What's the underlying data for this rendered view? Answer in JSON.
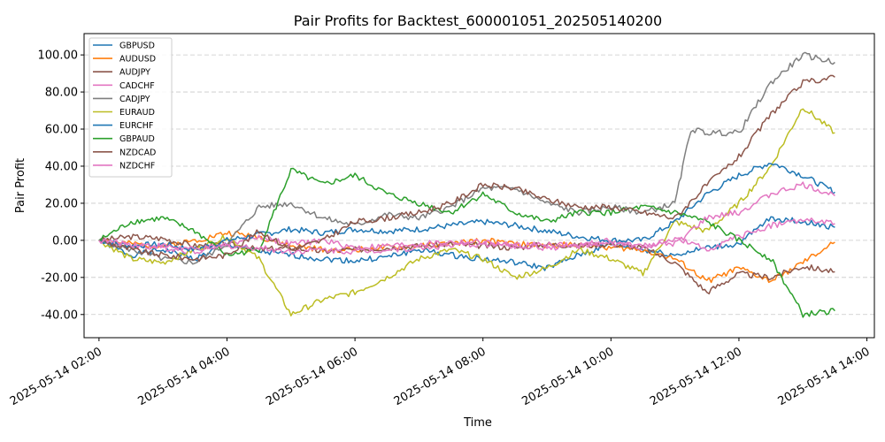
{
  "chart_data": {
    "type": "line",
    "title": "Pair Profits for Backtest_600001051_202505140200",
    "xlabel": "Time",
    "ylabel": "Pair Profit",
    "xlim": [
      "2025-05-14 01:46",
      "2025-05-14 14:07"
    ],
    "ylim": [
      -52.5,
      111.5
    ],
    "x_ticks": [
      "2025-05-14 02:00",
      "2025-05-14 04:00",
      "2025-05-14 06:00",
      "2025-05-14 08:00",
      "2025-05-14 10:00",
      "2025-05-14 12:00",
      "2025-05-14 14:00"
    ],
    "y_ticks": [
      -40,
      -20,
      0,
      20,
      40,
      60,
      80,
      100
    ],
    "y_tick_labels": [
      "-40.00",
      "-20.00",
      "0.00",
      "20.00",
      "40.00",
      "60.00",
      "80.00",
      "100.00"
    ],
    "grid": "horizontal dashed",
    "legend": "top-left",
    "series": [
      {
        "name": "GBPUSD",
        "color": "#1f77b4",
        "x": [
          "2025-05-14 02:00",
          "2025-05-14 02:30",
          "2025-05-14 03:00",
          "2025-05-14 03:30",
          "2025-05-14 04:00",
          "2025-05-14 04:30",
          "2025-05-14 05:00",
          "2025-05-14 05:30",
          "2025-05-14 06:00",
          "2025-05-14 06:30",
          "2025-05-14 07:00",
          "2025-05-14 07:30",
          "2025-05-14 08:00",
          "2025-05-14 08:30",
          "2025-05-14 09:00",
          "2025-05-14 09:30",
          "2025-05-14 10:00",
          "2025-05-14 10:30",
          "2025-05-14 11:00",
          "2025-05-14 11:30",
          "2025-05-14 12:00",
          "2025-05-14 12:30",
          "2025-05-14 13:00",
          "2025-05-14 13:30"
        ],
        "y": [
          0,
          -8,
          -5,
          -10,
          -2,
          -6,
          -8,
          -10,
          -11,
          -9,
          -5,
          -8,
          -10,
          -12,
          -15,
          -8,
          -2,
          -5,
          -8,
          -4,
          -2,
          12,
          10,
          7
        ]
      },
      {
        "name": "AUDUSD",
        "color": "#ff7f0e",
        "x": [
          "2025-05-14 02:00",
          "2025-05-14 02:30",
          "2025-05-14 03:00",
          "2025-05-14 03:30",
          "2025-05-14 04:00",
          "2025-05-14 04:30",
          "2025-05-14 05:00",
          "2025-05-14 05:30",
          "2025-05-14 06:00",
          "2025-05-14 06:30",
          "2025-05-14 07:00",
          "2025-05-14 07:30",
          "2025-05-14 08:00",
          "2025-05-14 08:30",
          "2025-05-14 09:00",
          "2025-05-14 09:30",
          "2025-05-14 10:00",
          "2025-05-14 10:30",
          "2025-05-14 11:00",
          "2025-05-14 11:30",
          "2025-05-14 12:00",
          "2025-05-14 12:30",
          "2025-05-14 13:00",
          "2025-05-14 13:30"
        ],
        "y": [
          0,
          -2,
          -3,
          0,
          4,
          2,
          -3,
          -5,
          -5,
          -4,
          -3,
          -2,
          0,
          -2,
          -3,
          -2,
          -4,
          -5,
          -10,
          -22,
          -15,
          -22,
          -12,
          -1
        ]
      },
      {
        "name": "AUDJPY",
        "color": "#8c564b",
        "x": [
          "2025-05-14 02:00",
          "2025-05-14 02:30",
          "2025-05-14 03:00",
          "2025-05-14 03:30",
          "2025-05-14 04:00",
          "2025-05-14 04:30",
          "2025-05-14 05:00",
          "2025-05-14 05:30",
          "2025-05-14 06:00",
          "2025-05-14 06:30",
          "2025-05-14 07:00",
          "2025-05-14 07:30",
          "2025-05-14 08:00",
          "2025-05-14 08:30",
          "2025-05-14 09:00",
          "2025-05-14 09:30",
          "2025-05-14 10:00",
          "2025-05-14 10:30",
          "2025-05-14 11:00",
          "2025-05-14 11:30",
          "2025-05-14 12:00",
          "2025-05-14 12:30",
          "2025-05-14 13:00",
          "2025-05-14 13:30"
        ],
        "y": [
          0,
          2,
          1,
          -3,
          -2,
          -5,
          -4,
          -6,
          -5,
          -4,
          -3,
          -2,
          -3,
          -4,
          -2,
          -3,
          -2,
          -4,
          -12,
          -28,
          -18,
          -20,
          -14,
          -17
        ]
      },
      {
        "name": "CADCHF",
        "color": "#e377c2",
        "x": [
          "2025-05-14 02:00",
          "2025-05-14 02:30",
          "2025-05-14 03:00",
          "2025-05-14 03:30",
          "2025-05-14 04:00",
          "2025-05-14 04:30",
          "2025-05-14 05:00",
          "2025-05-14 05:30",
          "2025-05-14 06:00",
          "2025-05-14 06:30",
          "2025-05-14 07:00",
          "2025-05-14 07:30",
          "2025-05-14 08:00",
          "2025-05-14 08:30",
          "2025-05-14 09:00",
          "2025-05-14 09:30",
          "2025-05-14 10:00",
          "2025-05-14 10:30",
          "2025-05-14 11:00",
          "2025-05-14 11:30",
          "2025-05-14 12:00",
          "2025-05-14 12:30",
          "2025-05-14 13:00",
          "2025-05-14 13:30"
        ],
        "y": [
          0,
          -3,
          -4,
          -6,
          -2,
          2,
          -2,
          0,
          -4,
          -3,
          -2,
          -1,
          -1,
          -3,
          -2,
          -3,
          0,
          -4,
          1,
          -5,
          2,
          8,
          11,
          9
        ]
      },
      {
        "name": "CADJPY",
        "color": "#7f7f7f",
        "x": [
          "2025-05-14 02:00",
          "2025-05-14 02:30",
          "2025-05-14 03:00",
          "2025-05-14 03:30",
          "2025-05-14 04:00",
          "2025-05-14 04:30",
          "2025-05-14 05:00",
          "2025-05-14 05:30",
          "2025-05-14 06:00",
          "2025-05-14 06:30",
          "2025-05-14 07:00",
          "2025-05-14 07:30",
          "2025-05-14 08:00",
          "2025-05-14 08:30",
          "2025-05-14 09:00",
          "2025-05-14 09:30",
          "2025-05-14 10:00",
          "2025-05-14 10:30",
          "2025-05-14 11:00",
          "2025-05-14 11:15",
          "2025-05-14 11:30",
          "2025-05-14 12:00",
          "2025-05-14 12:30",
          "2025-05-14 13:00",
          "2025-05-14 13:30"
        ],
        "y": [
          0,
          -5,
          -10,
          -12,
          -2,
          18,
          20,
          12,
          8,
          14,
          12,
          18,
          28,
          28,
          20,
          15,
          18,
          15,
          20,
          60,
          58,
          58,
          85,
          100,
          96
        ]
      },
      {
        "name": "EURAUD",
        "color": "#bcbd22",
        "x": [
          "2025-05-14 02:00",
          "2025-05-14 02:30",
          "2025-05-14 03:00",
          "2025-05-14 03:30",
          "2025-05-14 04:00",
          "2025-05-14 04:30",
          "2025-05-14 05:00",
          "2025-05-14 05:30",
          "2025-05-14 06:00",
          "2025-05-14 06:30",
          "2025-05-14 07:00",
          "2025-05-14 07:30",
          "2025-05-14 08:00",
          "2025-05-14 08:30",
          "2025-05-14 09:00",
          "2025-05-14 09:30",
          "2025-05-14 10:00",
          "2025-05-14 10:30",
          "2025-05-14 11:00",
          "2025-05-14 11:30",
          "2025-05-14 12:00",
          "2025-05-14 12:30",
          "2025-05-14 13:00",
          "2025-05-14 13:30"
        ],
        "y": [
          0,
          -10,
          -12,
          -5,
          2,
          -10,
          -40,
          -32,
          -28,
          -20,
          -10,
          -5,
          -10,
          -20,
          -15,
          -5,
          -10,
          -18,
          10,
          5,
          20,
          40,
          72,
          58
        ]
      },
      {
        "name": "EURCHF",
        "color": "#1f77b4",
        "x": [
          "2025-05-14 02:00",
          "2025-05-14 02:30",
          "2025-05-14 03:00",
          "2025-05-14 03:30",
          "2025-05-14 04:00",
          "2025-05-14 04:30",
          "2025-05-14 05:00",
          "2025-05-14 05:30",
          "2025-05-14 06:00",
          "2025-05-14 06:30",
          "2025-05-14 07:00",
          "2025-05-14 07:30",
          "2025-05-14 08:00",
          "2025-05-14 08:30",
          "2025-05-14 09:00",
          "2025-05-14 09:30",
          "2025-05-14 10:00",
          "2025-05-14 10:30",
          "2025-05-14 11:00",
          "2025-05-14 11:30",
          "2025-05-14 12:00",
          "2025-05-14 12:30",
          "2025-05-14 13:00",
          "2025-05-14 13:30"
        ],
        "y": [
          0,
          -3,
          -2,
          -5,
          0,
          3,
          6,
          4,
          6,
          5,
          6,
          8,
          10,
          8,
          5,
          2,
          0,
          0,
          10,
          25,
          35,
          42,
          35,
          26
        ]
      },
      {
        "name": "GBPAUD",
        "color": "#2ca02c",
        "x": [
          "2025-05-14 02:00",
          "2025-05-14 02:30",
          "2025-05-14 03:00",
          "2025-05-14 03:30",
          "2025-05-14 04:00",
          "2025-05-14 04:30",
          "2025-05-14 05:00",
          "2025-05-14 05:30",
          "2025-05-14 06:00",
          "2025-05-14 06:30",
          "2025-05-14 07:00",
          "2025-05-14 07:30",
          "2025-05-14 08:00",
          "2025-05-14 08:30",
          "2025-05-14 09:00",
          "2025-05-14 09:30",
          "2025-05-14 10:00",
          "2025-05-14 10:30",
          "2025-05-14 11:00",
          "2025-05-14 11:30",
          "2025-05-14 12:00",
          "2025-05-14 12:30",
          "2025-05-14 13:00",
          "2025-05-14 13:30"
        ],
        "y": [
          0,
          10,
          12,
          5,
          -8,
          -5,
          38,
          30,
          35,
          25,
          20,
          15,
          25,
          15,
          10,
          15,
          15,
          18,
          15,
          10,
          0,
          -10,
          -40,
          -38
        ]
      },
      {
        "name": "NZDCAD",
        "color": "#8c564b",
        "x": [
          "2025-05-14 02:00",
          "2025-05-14 02:30",
          "2025-05-14 03:00",
          "2025-05-14 03:30",
          "2025-05-14 04:00",
          "2025-05-14 04:30",
          "2025-05-14 05:00",
          "2025-05-14 05:30",
          "2025-05-14 06:00",
          "2025-05-14 06:30",
          "2025-05-14 07:00",
          "2025-05-14 07:30",
          "2025-05-14 08:00",
          "2025-05-14 08:30",
          "2025-05-14 09:00",
          "2025-05-14 09:30",
          "2025-05-14 10:00",
          "2025-05-14 10:30",
          "2025-05-14 11:00",
          "2025-05-14 11:30",
          "2025-05-14 12:00",
          "2025-05-14 12:30",
          "2025-05-14 13:00",
          "2025-05-14 13:30"
        ],
        "y": [
          0,
          -5,
          -8,
          -10,
          -8,
          5,
          -5,
          0,
          10,
          12,
          15,
          20,
          30,
          28,
          22,
          18,
          18,
          15,
          12,
          30,
          45,
          68,
          85,
          88
        ]
      },
      {
        "name": "NZDCHF",
        "color": "#e377c2",
        "x": [
          "2025-05-14 02:00",
          "2025-05-14 02:30",
          "2025-05-14 03:00",
          "2025-05-14 03:30",
          "2025-05-14 04:00",
          "2025-05-14 04:30",
          "2025-05-14 05:00",
          "2025-05-14 05:30",
          "2025-05-14 06:00",
          "2025-05-14 06:30",
          "2025-05-14 07:00",
          "2025-05-14 07:30",
          "2025-05-14 08:00",
          "2025-05-14 08:30",
          "2025-05-14 09:00",
          "2025-05-14 09:30",
          "2025-05-14 10:00",
          "2025-05-14 10:30",
          "2025-05-14 11:00",
          "2025-05-14 11:30",
          "2025-05-14 12:00",
          "2025-05-14 12:30",
          "2025-05-14 13:00",
          "2025-05-14 13:30"
        ],
        "y": [
          0,
          -2,
          -3,
          -5,
          -3,
          -4,
          -6,
          -5,
          -6,
          -5,
          -4,
          -3,
          -2,
          -3,
          -4,
          -3,
          -2,
          -3,
          -2,
          12,
          15,
          25,
          30,
          24
        ]
      }
    ]
  }
}
